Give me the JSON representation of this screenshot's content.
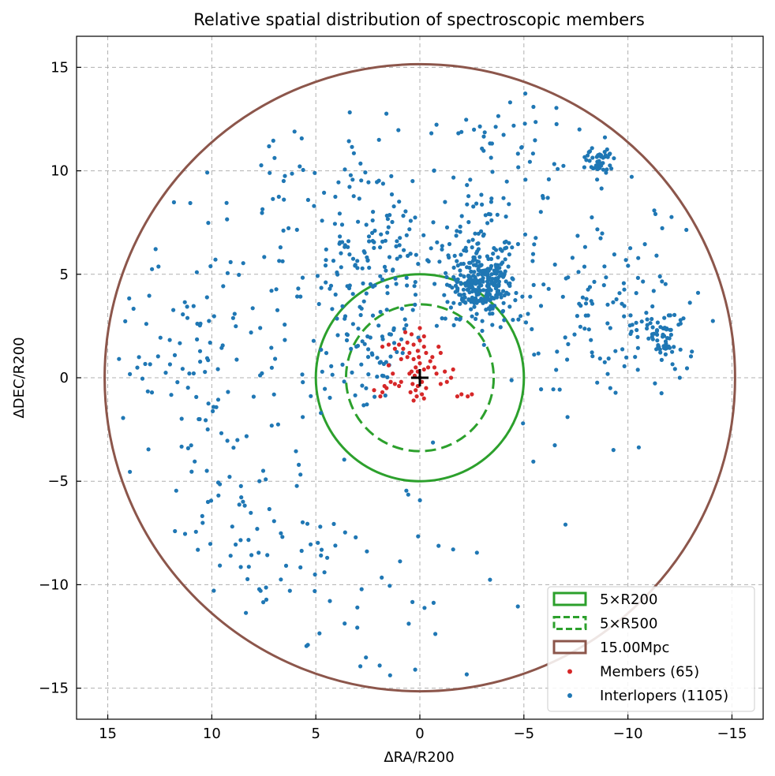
{
  "chart_data": {
    "type": "scatter",
    "title": "Relative spatial distribution of spectroscopic members",
    "xlabel": "ΔRA/R200",
    "ylabel": "ΔDEC/R200",
    "xlim": [
      16.5,
      -16.5
    ],
    "ylim": [
      -16.5,
      16.5
    ],
    "x_ticks": [
      15,
      10,
      5,
      0,
      -5,
      -10,
      -15
    ],
    "y_ticks": [
      15,
      10,
      5,
      0,
      -5,
      -10,
      -15
    ],
    "x_tick_labels": [
      "15",
      "10",
      "5",
      "0",
      "−5",
      "−10",
      "−15"
    ],
    "y_tick_labels": [
      "15",
      "10",
      "5",
      "0",
      "−5",
      "−10",
      "−15"
    ],
    "grid": true,
    "legend_position": "lower-right",
    "colors": {
      "members": "#d62728",
      "interlopers": "#1f77b4",
      "r200": "#2ca02c",
      "r500": "#2ca02c",
      "mpc": "#8c564b",
      "grid": "#b0b0b0"
    },
    "center_marker": {
      "x": 0,
      "y": 0,
      "symbol": "+"
    },
    "circles": [
      {
        "name": "5×R200",
        "radius": 5.0,
        "style": "solid",
        "color": "#2ca02c"
      },
      {
        "name": "5×R500",
        "radius": 3.55,
        "style": "dashed",
        "color": "#2ca02c"
      },
      {
        "name": "15.00Mpc",
        "radius": 15.15,
        "style": "solid",
        "color": "#8c564b"
      }
    ],
    "legend": [
      {
        "label": "5×R200",
        "kind": "patch-solid",
        "color": "#2ca02c"
      },
      {
        "label": "5×R500",
        "kind": "patch-dashed",
        "color": "#2ca02c"
      },
      {
        "label": "15.00Mpc",
        "kind": "patch-solid",
        "color": "#8c564b"
      },
      {
        "label": "Members (65)",
        "kind": "dot",
        "color": "#d62728"
      },
      {
        "label": "Interlopers (1105)",
        "kind": "dot",
        "color": "#1f77b4"
      }
    ],
    "series": [
      {
        "name": "Members (65)",
        "color": "#d62728",
        "points": [
          [
            0.0,
            0.0
          ],
          [
            0.1,
            0.3
          ],
          [
            -0.1,
            -0.2
          ],
          [
            0.2,
            0.5
          ],
          [
            0.0,
            0.7
          ],
          [
            0.1,
            -0.4
          ],
          [
            -0.2,
            0.4
          ],
          [
            0.2,
            -0.6
          ],
          [
            0.05,
            1.0
          ],
          [
            0.1,
            1.3
          ],
          [
            0.0,
            1.8
          ],
          [
            -0.2,
            1.5
          ],
          [
            0.3,
            0.9
          ],
          [
            0.25,
            0.1
          ],
          [
            -0.1,
            -0.8
          ],
          [
            0.15,
            -0.9
          ],
          [
            0.35,
            -0.3
          ],
          [
            0.4,
            0.3
          ],
          [
            -0.3,
            -0.5
          ],
          [
            0.5,
            0.2
          ],
          [
            0.45,
            -0.7
          ],
          [
            0.6,
            1.0
          ],
          [
            0.8,
            1.4
          ],
          [
            1.0,
            1.6
          ],
          [
            0.6,
            1.7
          ],
          [
            0.4,
            2.1
          ],
          [
            0.7,
            2.2
          ],
          [
            1.2,
            1.4
          ],
          [
            0.9,
            0.9
          ],
          [
            0.3,
            1.6
          ],
          [
            -0.5,
            0.8
          ],
          [
            -0.7,
            0.5
          ],
          [
            -0.6,
            1.0
          ],
          [
            -0.3,
            1.2
          ],
          [
            -0.9,
            1.5
          ],
          [
            -0.2,
            2.0
          ],
          [
            0.0,
            2.4
          ],
          [
            1.5,
            1.6
          ],
          [
            1.8,
            1.5
          ],
          [
            -1.0,
            1.2
          ],
          [
            -0.8,
            0.2
          ],
          [
            -1.0,
            -0.3
          ],
          [
            -1.3,
            -0.2
          ],
          [
            -1.5,
            0.0
          ],
          [
            -1.2,
            0.3
          ],
          [
            -2.0,
            -0.8
          ],
          [
            -2.3,
            -0.9
          ],
          [
            -2.5,
            -0.8
          ],
          [
            -1.8,
            -0.9
          ],
          [
            -1.6,
            0.4
          ],
          [
            0.9,
            -0.2
          ],
          [
            1.0,
            -0.4
          ],
          [
            1.2,
            -0.3
          ],
          [
            1.4,
            -0.2
          ],
          [
            1.3,
            0.2
          ],
          [
            1.6,
            -0.5
          ],
          [
            1.8,
            -0.7
          ],
          [
            1.9,
            -0.9
          ],
          [
            2.2,
            -0.6
          ],
          [
            1.7,
            -0.4
          ],
          [
            1.5,
            0.6
          ],
          [
            -0.4,
            0.5
          ],
          [
            0.5,
            1.2
          ],
          [
            0.3,
            -1.1
          ],
          [
            -0.2,
            -1.0
          ]
        ]
      },
      {
        "name": "Interlopers (1105)",
        "color": "#1f77b4",
        "generator": {
          "seed": 7,
          "clusters": [
            {
              "n": 250,
              "x": -3.0,
              "y": 4.4,
              "spread": 0.75
            },
            {
              "n": 90,
              "x": -2.8,
              "y": 6.0,
              "spread": 1.3
            },
            {
              "n": 45,
              "x": -8.6,
              "y": 10.4,
              "spread": 0.35
            },
            {
              "n": 60,
              "x": -11.6,
              "y": 2.1,
              "spread": 0.55
            },
            {
              "n": 120,
              "x": 2.5,
              "y": 5.8,
              "spread": 1.9
            },
            {
              "n": 110,
              "x": -9.0,
              "y": 3.8,
              "spread": 2.3
            },
            {
              "n": 100,
              "x": 10.5,
              "y": 1.8,
              "spread": 2.9
            },
            {
              "n": 70,
              "x": 2.0,
              "y": 1.5,
              "spread": 1.4
            },
            {
              "n": 60,
              "x": 9.0,
              "y": -7.5,
              "spread": 3.0
            },
            {
              "n": 40,
              "x": 2.5,
              "y": -9.5,
              "spread": 2.5
            },
            {
              "n": 50,
              "x": -4.5,
              "y": 10.5,
              "spread": 1.8
            },
            {
              "n": 40,
              "x": 5.0,
              "y": 9.0,
              "spread": 2.3
            },
            {
              "n": 70,
              "x": 0.0,
              "y": 0.0,
              "spread": 14.8
            }
          ]
        }
      }
    ]
  }
}
